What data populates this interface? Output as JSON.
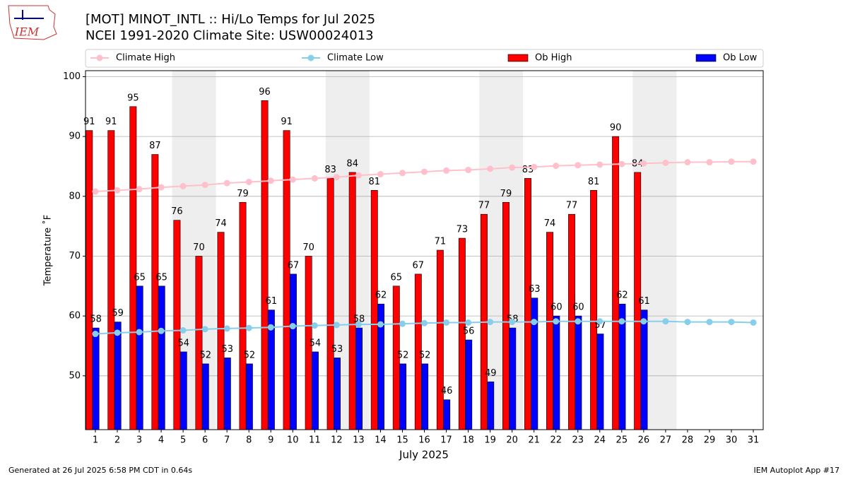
{
  "logo": "IEM",
  "footer": {
    "left": "Generated at 26 Jul 2025 6:58 PM CDT in 0.64s",
    "right": "IEM Autoplot App #17"
  },
  "chart_data": {
    "type": "bar",
    "title": "[MOT] MINOT_INTL :: Hi/Lo Temps for Jul 2025",
    "subtitle": "NCEI 1991-2020 Climate Site: USW00024013",
    "x_label": "July 2025",
    "y_label": "Temperature ˚F",
    "x": [
      1,
      2,
      3,
      4,
      5,
      6,
      7,
      8,
      9,
      10,
      11,
      12,
      13,
      14,
      15,
      16,
      17,
      18,
      19,
      20,
      21,
      22,
      23,
      24,
      25,
      26,
      27,
      28,
      29,
      30,
      31
    ],
    "xlim": [
      0.55,
      31.45
    ],
    "xticks": [
      1,
      2,
      3,
      4,
      5,
      6,
      7,
      8,
      9,
      10,
      11,
      12,
      13,
      14,
      15,
      16,
      17,
      18,
      19,
      20,
      21,
      22,
      23,
      24,
      25,
      26,
      27,
      28,
      29,
      30,
      31
    ],
    "ylim": [
      41,
      101
    ],
    "yticks": [
      50,
      60,
      70,
      80,
      90,
      100
    ],
    "grid": true,
    "weekends": [
      5,
      12,
      19,
      26
    ],
    "series": [
      {
        "name": "Climate High",
        "type": "line",
        "color": "#ffc0cb",
        "values": [
          80.8,
          81.0,
          81.2,
          81.5,
          81.7,
          81.9,
          82.2,
          82.4,
          82.6,
          82.8,
          83.0,
          83.2,
          83.5,
          83.7,
          83.9,
          84.1,
          84.3,
          84.4,
          84.6,
          84.8,
          84.9,
          85.1,
          85.2,
          85.3,
          85.4,
          85.5,
          85.6,
          85.7,
          85.7,
          85.8,
          85.8
        ]
      },
      {
        "name": "Climate Low",
        "type": "line",
        "color": "#87ceeb",
        "values": [
          57.0,
          57.2,
          57.3,
          57.5,
          57.6,
          57.8,
          57.9,
          58.0,
          58.1,
          58.3,
          58.4,
          58.5,
          58.6,
          58.6,
          58.7,
          58.8,
          58.9,
          58.9,
          59.0,
          59.0,
          59.0,
          59.1,
          59.1,
          59.1,
          59.1,
          59.1,
          59.1,
          59.0,
          59.0,
          59.0,
          58.9
        ]
      },
      {
        "name": "Ob High",
        "type": "bar",
        "color": "#ff0000",
        "values": [
          91,
          91,
          95,
          87,
          76,
          70,
          74,
          79,
          96,
          91,
          70,
          83,
          84,
          81,
          65,
          67,
          71,
          73,
          77,
          79,
          83,
          74,
          77,
          81,
          90,
          84,
          null,
          null,
          null,
          null,
          null
        ]
      },
      {
        "name": "Ob Low",
        "type": "bar",
        "color": "#0000ff",
        "values": [
          58,
          59,
          65,
          65,
          54,
          52,
          53,
          52,
          61,
          67,
          54,
          53,
          58,
          62,
          52,
          52,
          46,
          56,
          49,
          58,
          63,
          60,
          60,
          57,
          62,
          61,
          null,
          null,
          null,
          null,
          null
        ]
      }
    ]
  }
}
